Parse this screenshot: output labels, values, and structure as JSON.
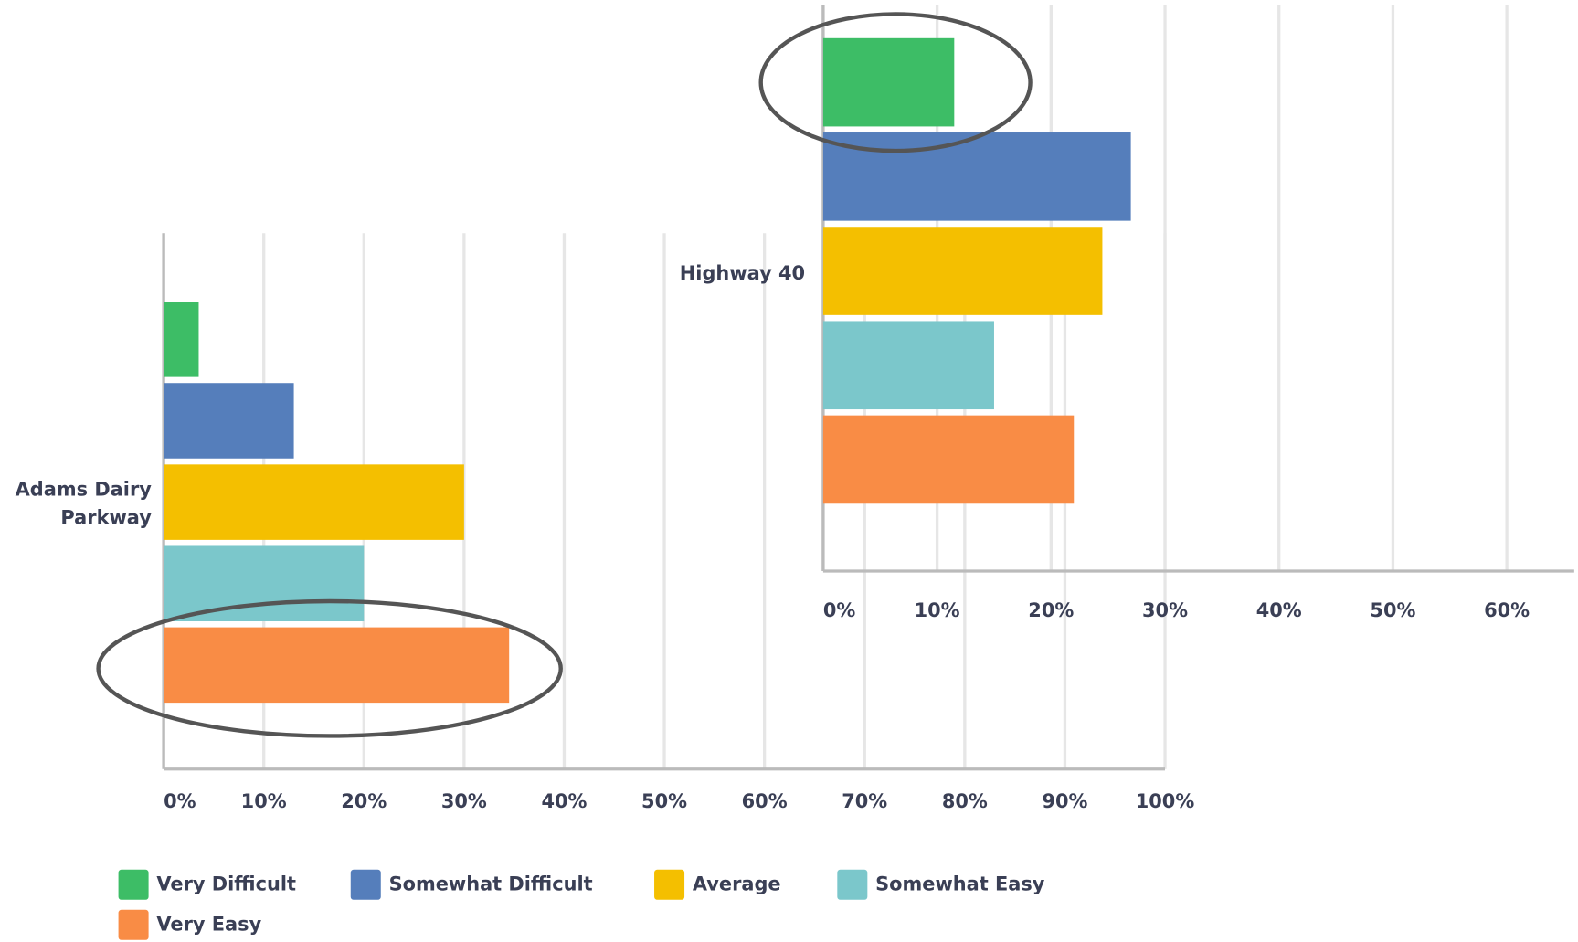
{
  "chart_data": [
    {
      "type": "bar",
      "orientation": "horizontal",
      "categories": [
        "Adams Dairy Parkway"
      ],
      "series": [
        {
          "name": "Very Difficult",
          "color": "#3dbd66",
          "values": [
            3.5
          ]
        },
        {
          "name": "Somewhat Difficult",
          "color": "#557ebb",
          "values": [
            13
          ]
        },
        {
          "name": "Average",
          "color": "#f4bf00",
          "values": [
            30
          ]
        },
        {
          "name": "Somewhat Easy",
          "color": "#7bc7cb",
          "values": [
            20
          ]
        },
        {
          "name": "Very Easy",
          "color": "#f98c45",
          "values": [
            34.5
          ]
        }
      ],
      "xlim": [
        0,
        100
      ],
      "xticks": [
        {
          "value": 0,
          "label": "0%"
        },
        {
          "value": 10,
          "label": "10%"
        },
        {
          "value": 20,
          "label": "20%"
        },
        {
          "value": 30,
          "label": "30%"
        },
        {
          "value": 40,
          "label": "40%"
        },
        {
          "value": 50,
          "label": "50%"
        },
        {
          "value": 60,
          "label": "60%"
        },
        {
          "value": 70,
          "label": "70%"
        },
        {
          "value": 80,
          "label": "80%"
        },
        {
          "value": 90,
          "label": "90%"
        },
        {
          "value": 100,
          "label": "100%"
        }
      ],
      "grid": true
    },
    {
      "type": "bar",
      "orientation": "horizontal",
      "categories": [
        "Highway 40"
      ],
      "series": [
        {
          "values": [
            11.5
          ]
        },
        {
          "values": [
            27
          ]
        },
        {
          "values": [
            24.5
          ]
        },
        {
          "values": [
            15
          ]
        },
        {
          "values": [
            22
          ]
        }
      ],
      "xlim": [
        0,
        60
      ],
      "xticks": [
        {
          "value": 0,
          "label": "0%"
        },
        {
          "value": 10,
          "label": "10%"
        },
        {
          "value": 20,
          "label": "20%"
        },
        {
          "value": 30,
          "label": "30%"
        },
        {
          "value": 40,
          "label": "40%"
        },
        {
          "value": 50,
          "label": "50%"
        },
        {
          "value": 60,
          "label": "60%"
        }
      ],
      "grid": true
    }
  ]
}
